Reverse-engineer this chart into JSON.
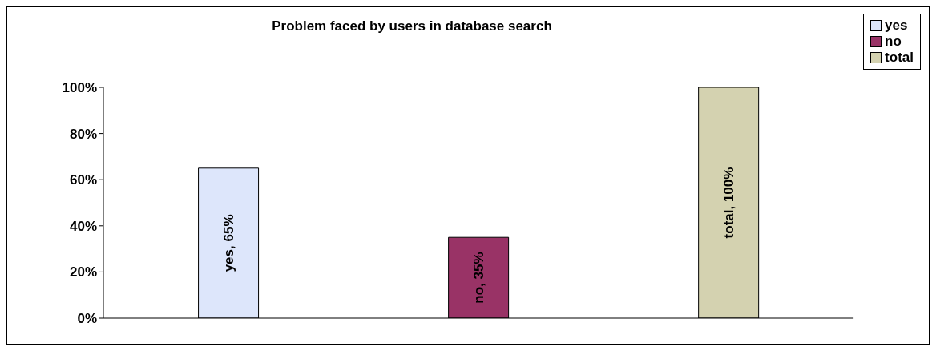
{
  "chart_data": {
    "type": "bar",
    "title": "Problem faced by users in database search",
    "categories": [
      null,
      null,
      null
    ],
    "series": [
      {
        "name": "yes",
        "color": "#dde6fb",
        "values": [
          65,
          null,
          null
        ],
        "value_labels": [
          "yes, 65%",
          null,
          null
        ]
      },
      {
        "name": "no",
        "color": "#993366",
        "values": [
          null,
          35,
          null
        ],
        "value_labels": [
          null,
          "no, 35%",
          null
        ]
      },
      {
        "name": "total",
        "color": "#d4d2b0",
        "values": [
          null,
          null,
          100
        ],
        "value_labels": [
          null,
          null,
          "total, 100%"
        ]
      }
    ],
    "ylim": [
      0,
      100
    ],
    "yticks": [
      {
        "value": 0,
        "label": "0%"
      },
      {
        "value": 20,
        "label": "20%"
      },
      {
        "value": 40,
        "label": "40%"
      },
      {
        "value": 60,
        "label": "60%"
      },
      {
        "value": 80,
        "label": "80%"
      },
      {
        "value": 100,
        "label": "100%"
      }
    ],
    "legend": "top right"
  }
}
